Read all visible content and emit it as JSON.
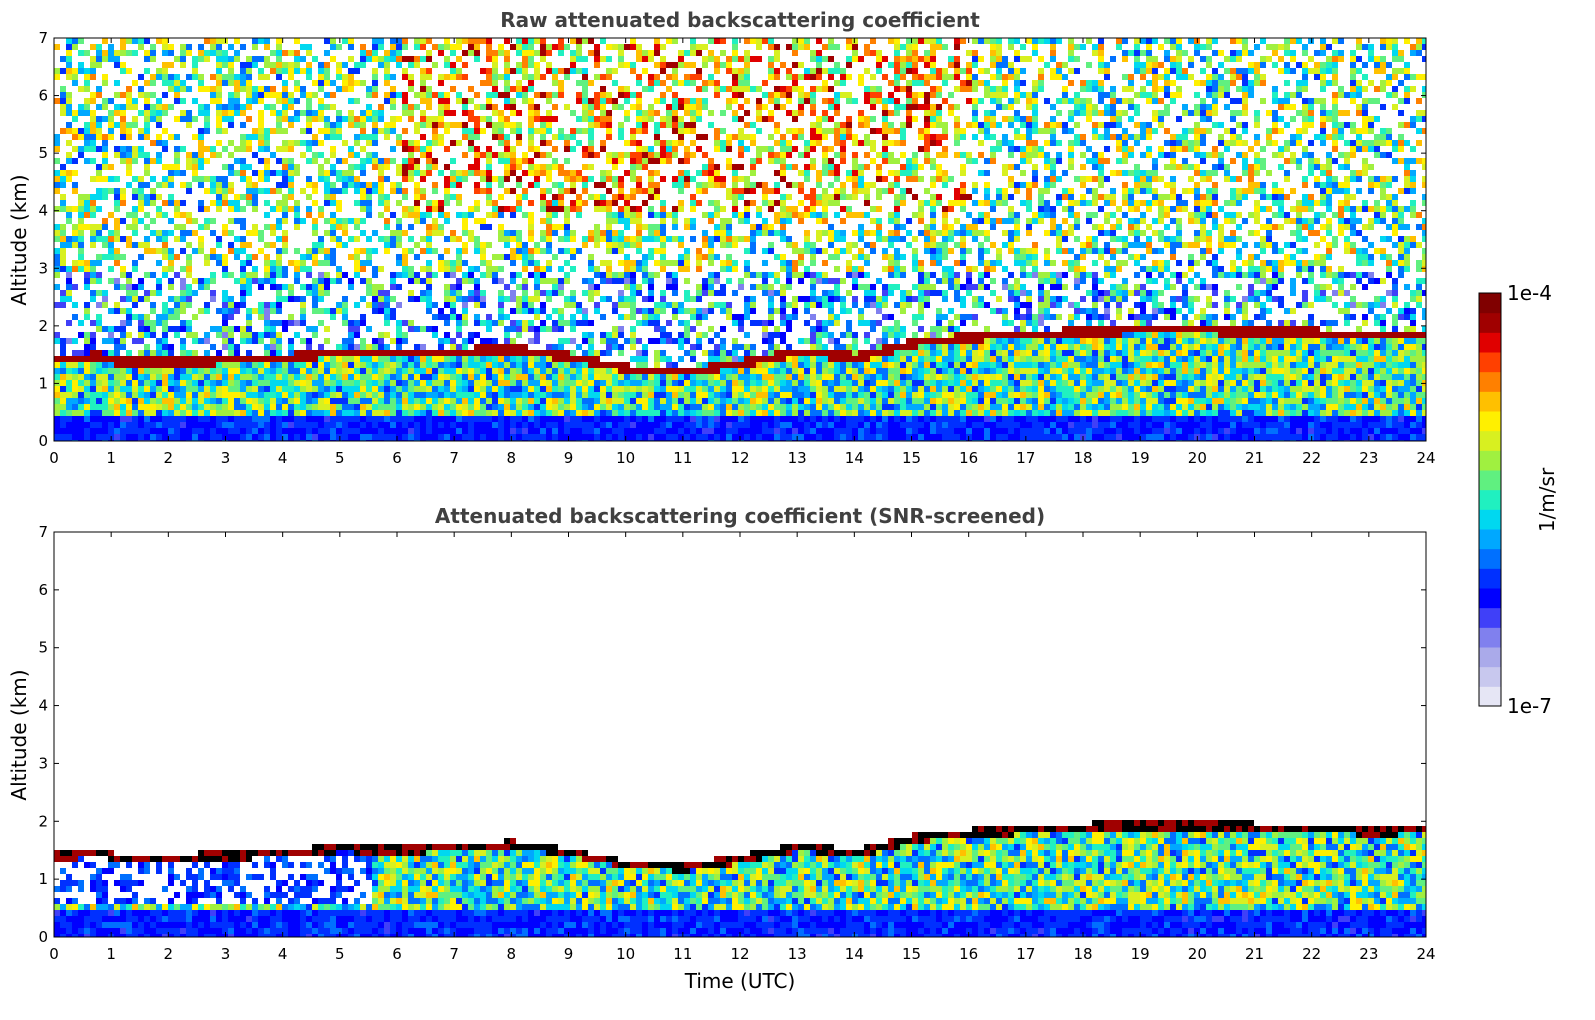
{
  "chart_data": [
    {
      "type": "heatmap",
      "title": "Raw attenuated backscattering coefficient",
      "xlabel": "",
      "ylabel": "Altitude (km)",
      "xlim": [
        0,
        24
      ],
      "ylim": [
        0,
        7
      ],
      "x_ticks": [
        "0",
        "1",
        "2",
        "3",
        "4",
        "5",
        "6",
        "7",
        "8",
        "9",
        "10",
        "11",
        "12",
        "13",
        "14",
        "15",
        "16",
        "17",
        "18",
        "19",
        "20",
        "21",
        "22",
        "23",
        "24"
      ],
      "y_ticks": [
        "0",
        "1",
        "2",
        "3",
        "4",
        "5",
        "6",
        "7"
      ],
      "screened": false,
      "boundary_layer_top_km": [
        [
          0.3,
          1.45
        ],
        [
          0.7,
          1.55
        ],
        [
          1.0,
          1.42
        ],
        [
          2.0,
          1.42
        ],
        [
          3.0,
          1.45
        ],
        [
          4.0,
          1.5
        ],
        [
          5.0,
          1.58
        ],
        [
          6.0,
          1.55
        ],
        [
          7.0,
          1.6
        ],
        [
          8.0,
          1.65
        ],
        [
          9.0,
          1.5
        ],
        [
          10.0,
          1.3
        ],
        [
          11.0,
          1.25
        ],
        [
          12.0,
          1.4
        ],
        [
          13.0,
          1.6
        ],
        [
          14.0,
          1.5
        ],
        [
          15.0,
          1.75
        ],
        [
          16.0,
          1.85
        ],
        [
          17.0,
          1.9
        ],
        [
          18.0,
          1.95
        ],
        [
          19.0,
          1.97
        ],
        [
          20.0,
          1.97
        ],
        [
          21.0,
          1.95
        ],
        [
          22.0,
          1.93
        ],
        [
          23.0,
          1.87
        ],
        [
          24.0,
          1.9
        ]
      ]
    },
    {
      "type": "heatmap",
      "title": "Attenuated backscattering coefficient (SNR-screened)",
      "xlabel": "Time (UTC)",
      "ylabel": "Altitude (km)",
      "xlim": [
        0,
        24
      ],
      "ylim": [
        0,
        7
      ],
      "x_ticks": [
        "0",
        "1",
        "2",
        "3",
        "4",
        "5",
        "6",
        "7",
        "8",
        "9",
        "10",
        "11",
        "12",
        "13",
        "14",
        "15",
        "16",
        "17",
        "18",
        "19",
        "20",
        "21",
        "22",
        "23",
        "24"
      ],
      "y_ticks": [
        "0",
        "1",
        "2",
        "3",
        "4",
        "5",
        "6",
        "7"
      ],
      "screened": true,
      "boundary_layer_top_km": [
        [
          0.3,
          1.45
        ],
        [
          0.7,
          1.55
        ],
        [
          1.0,
          1.42
        ],
        [
          2.0,
          1.42
        ],
        [
          3.0,
          1.45
        ],
        [
          4.0,
          1.5
        ],
        [
          5.0,
          1.58
        ],
        [
          6.0,
          1.55
        ],
        [
          7.0,
          1.6
        ],
        [
          8.0,
          1.65
        ],
        [
          9.0,
          1.5
        ],
        [
          10.0,
          1.3
        ],
        [
          11.0,
          1.25
        ],
        [
          12.0,
          1.4
        ],
        [
          13.0,
          1.6
        ],
        [
          14.0,
          1.5
        ],
        [
          15.0,
          1.75
        ],
        [
          16.0,
          1.85
        ],
        [
          17.0,
          1.9
        ],
        [
          18.0,
          1.95
        ],
        [
          19.0,
          1.97
        ],
        [
          20.0,
          1.97
        ],
        [
          21.0,
          1.95
        ],
        [
          22.0,
          1.93
        ],
        [
          23.0,
          1.87
        ],
        [
          24.0,
          1.9
        ]
      ]
    }
  ],
  "colorbar": {
    "label": "1/m/sr",
    "max_label": "1e-4",
    "min_label": "1e-7",
    "scale": "log",
    "colors": [
      "#e6e6f5",
      "#c8c8ee",
      "#aaaaea",
      "#8080ee",
      "#4040f8",
      "#0000ff",
      "#0030ff",
      "#0070ff",
      "#00a8ff",
      "#00d8f0",
      "#20f0c0",
      "#60f080",
      "#a0f040",
      "#d8f020",
      "#fff000",
      "#ffc000",
      "#ff8000",
      "#ff4000",
      "#e00000",
      "#a00000",
      "#800000"
    ]
  }
}
